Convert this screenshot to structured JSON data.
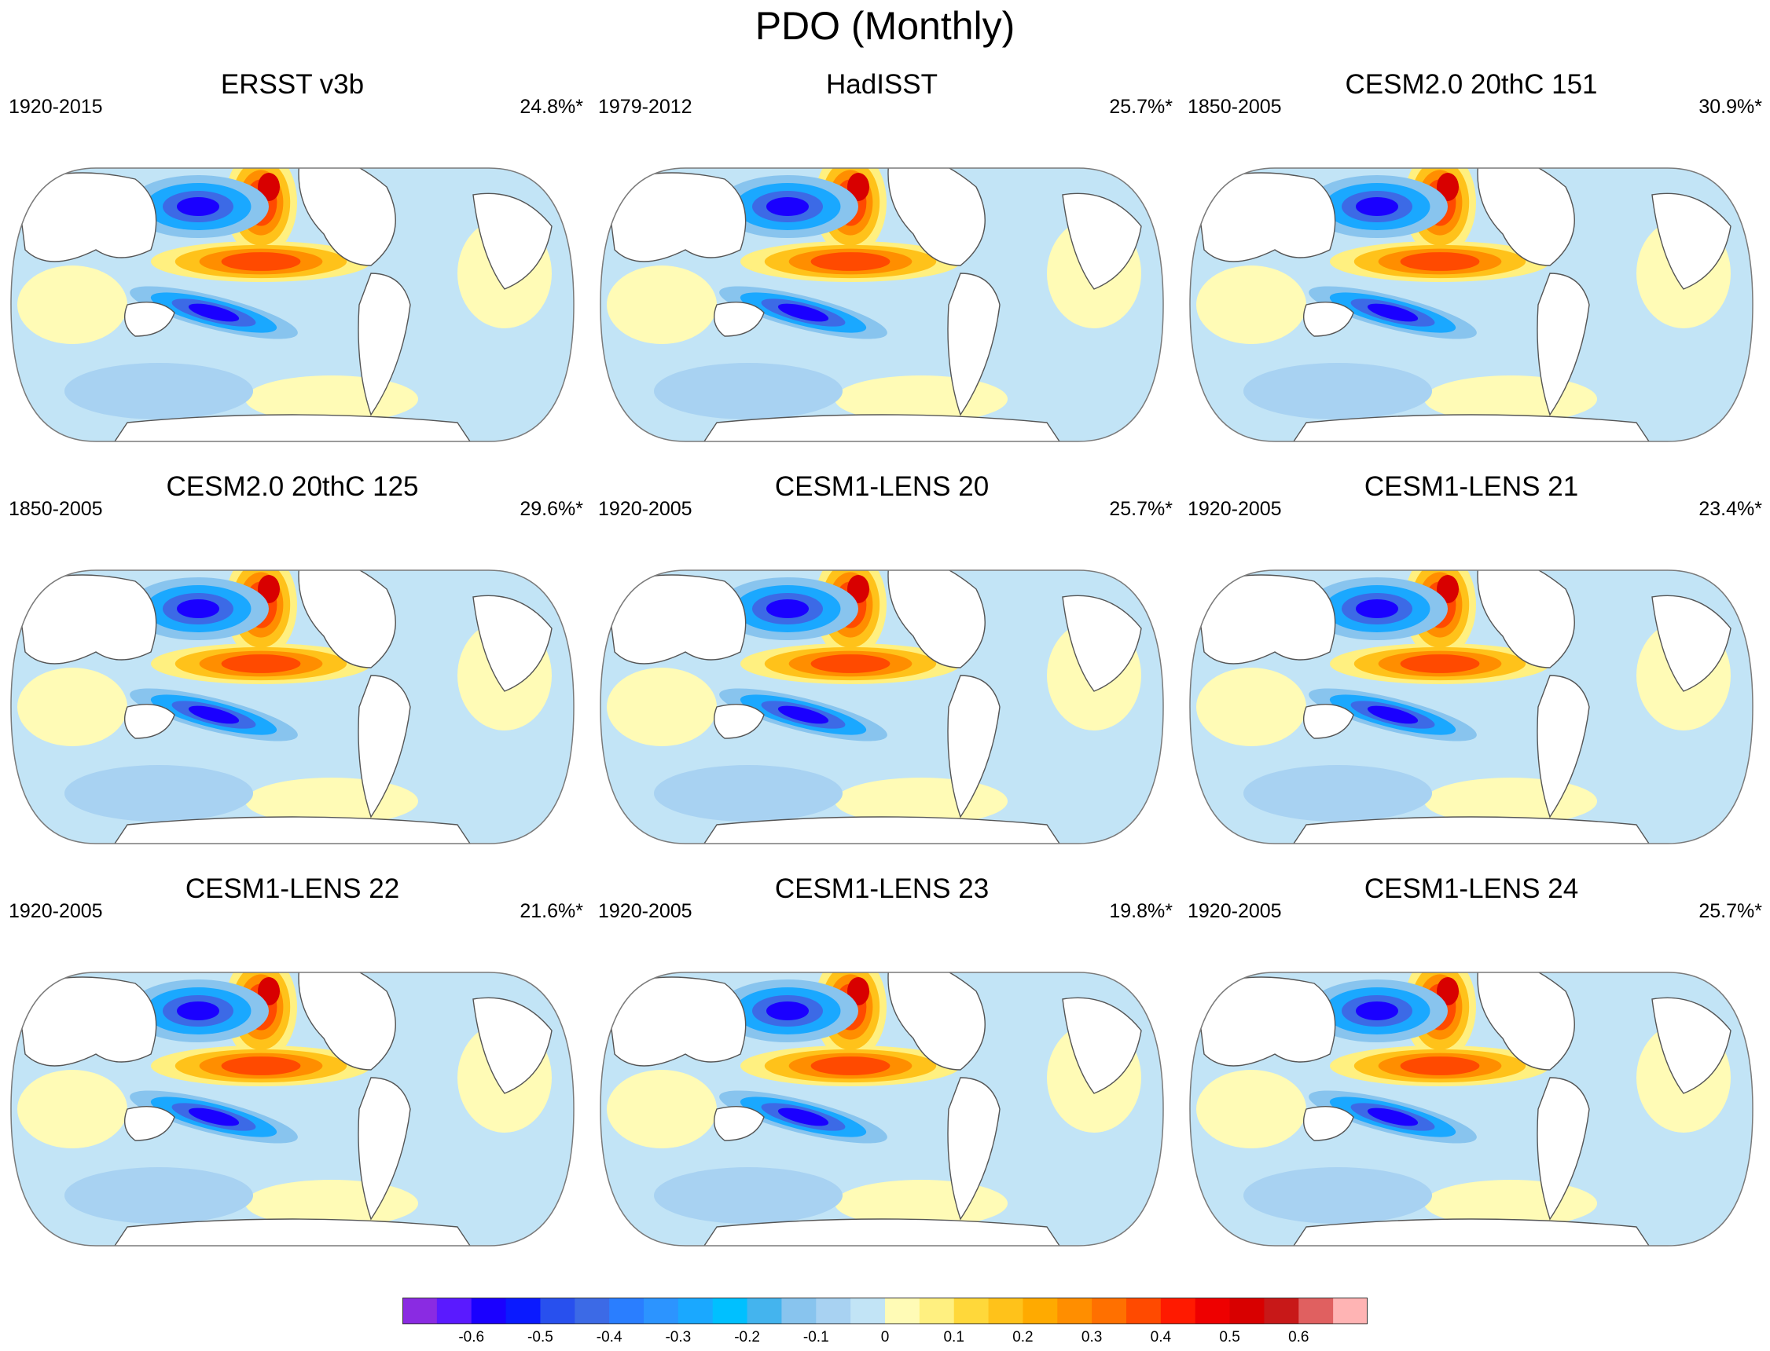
{
  "figure_title": "PDO (Monthly)",
  "panels": [
    {
      "title": "ERSST v3b",
      "years": "1920-2015",
      "variance": "24.8%*"
    },
    {
      "title": "HadISST",
      "years": "1979-2012",
      "variance": "25.7%*"
    },
    {
      "title": "CESM2.0 20thC 151",
      "years": "1850-2005",
      "variance": "30.9%*"
    },
    {
      "title": "CESM2.0 20thC 125",
      "years": "1850-2005",
      "variance": "29.6%*"
    },
    {
      "title": "CESM1-LENS 20",
      "years": "1920-2005",
      "variance": "25.7%*"
    },
    {
      "title": "CESM1-LENS 21",
      "years": "1920-2005",
      "variance": "23.4%*"
    },
    {
      "title": "CESM1-LENS 22",
      "years": "1920-2005",
      "variance": "21.6%*"
    },
    {
      "title": "CESM1-LENS 23",
      "years": "1920-2005",
      "variance": "19.8%*"
    },
    {
      "title": "CESM1-LENS 24",
      "years": "1920-2005",
      "variance": "25.7%*"
    }
  ],
  "colorbar": {
    "labels": [
      "-0.6",
      "-0.5",
      "-0.4",
      "-0.3",
      "-0.2",
      "-0.1",
      "0",
      "0.1",
      "0.2",
      "0.3",
      "0.4",
      "0.5",
      "0.6"
    ],
    "colors": [
      "#8a2be2",
      "#5a1aff",
      "#1a00ff",
      "#0a1aff",
      "#2850ee",
      "#3c6ae6",
      "#2a7eff",
      "#2c94ff",
      "#1aa8ff",
      "#00c0ff",
      "#44b4ee",
      "#88c4ee",
      "#a8d2f2",
      "#c2e4f6",
      "#fffbb6",
      "#fff080",
      "#ffd83a",
      "#ffc21a",
      "#ffaa00",
      "#ff8e00",
      "#ff7000",
      "#ff4a00",
      "#ff1a00",
      "#ee0000",
      "#d80000",
      "#c81818",
      "#e06060",
      "#ffb4b4"
    ]
  },
  "colors": {
    "land": "#ffffff",
    "coastline": "#555555",
    "ocean_base": "#c2e4f6"
  }
}
